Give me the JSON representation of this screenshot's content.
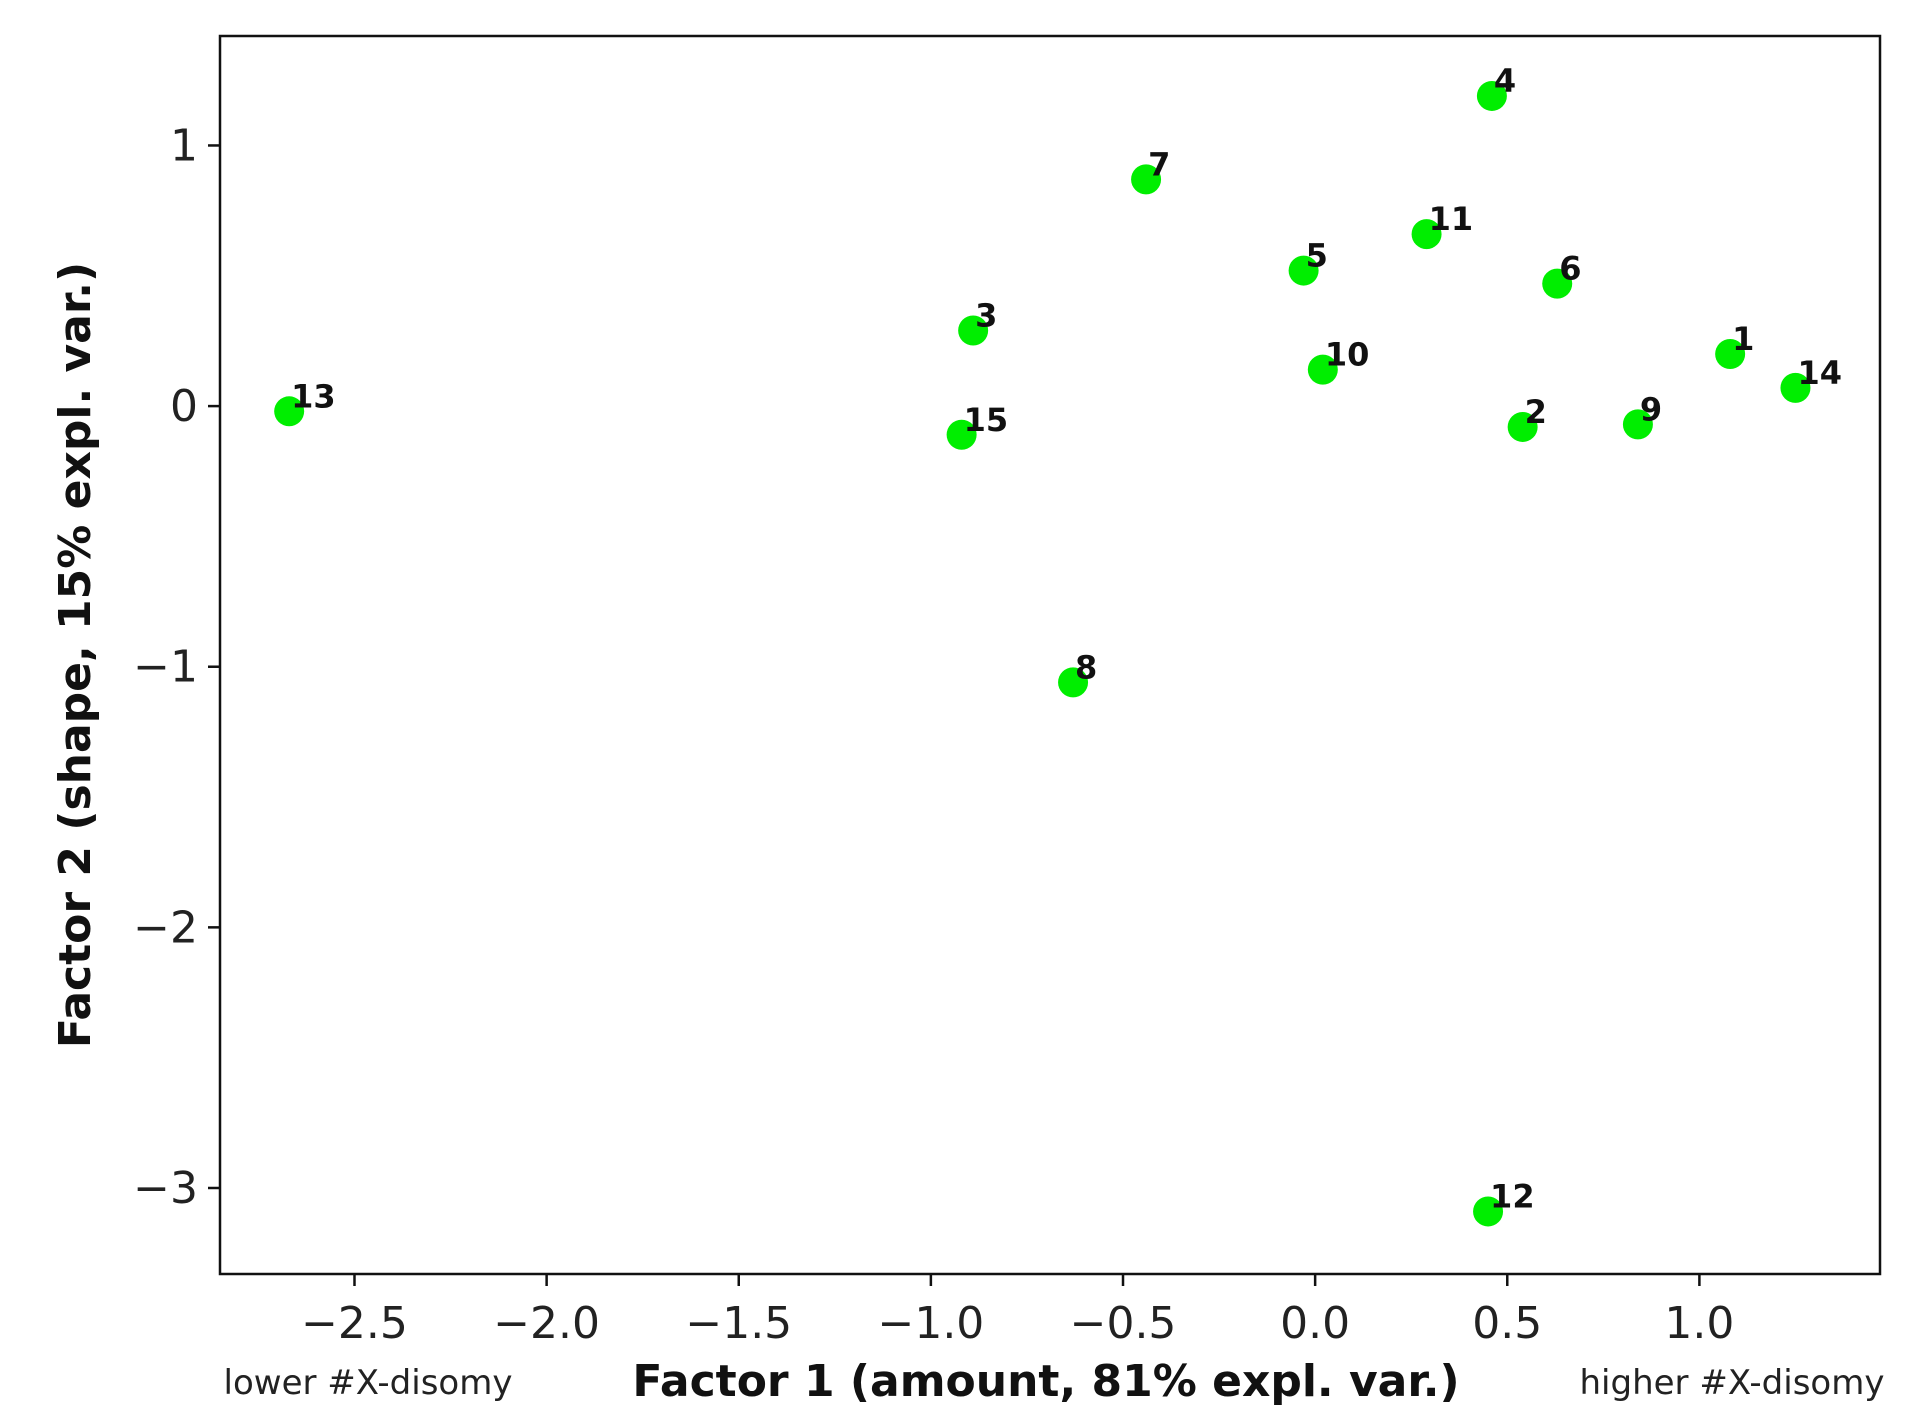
{
  "chart_data": {
    "type": "scatter",
    "xlabel": "Factor 1 (amount, 81% expl. var.)",
    "ylabel": "Factor 2 (shape, 15% expl. var.)",
    "xlim": [
      -2.85,
      1.47
    ],
    "ylim": [
      -3.33,
      1.42
    ],
    "xticks": [
      -2.5,
      -2.0,
      -1.5,
      -1.0,
      -0.5,
      0.0,
      0.5,
      1.0
    ],
    "xtick_labels": [
      "−2.5",
      "−2.0",
      "−1.5",
      "−1.0",
      "−0.5",
      "0.0",
      "0.5",
      "1.0"
    ],
    "yticks": [
      1,
      0,
      -1,
      -2,
      -3
    ],
    "ytick_labels": [
      "1",
      "0",
      "−1",
      "−2",
      "−3"
    ],
    "grid": false,
    "marker_color": "#00ee00",
    "points": [
      {
        "label": "1",
        "x": 1.08,
        "y": 0.2
      },
      {
        "label": "2",
        "x": 0.54,
        "y": -0.08
      },
      {
        "label": "3",
        "x": -0.89,
        "y": 0.29
      },
      {
        "label": "4",
        "x": 0.46,
        "y": 1.19
      },
      {
        "label": "5",
        "x": -0.03,
        "y": 0.52
      },
      {
        "label": "6",
        "x": 0.63,
        "y": 0.47
      },
      {
        "label": "7",
        "x": -0.44,
        "y": 0.87
      },
      {
        "label": "8",
        "x": -0.63,
        "y": -1.06
      },
      {
        "label": "9",
        "x": 0.84,
        "y": -0.07
      },
      {
        "label": "10",
        "x": 0.02,
        "y": 0.14
      },
      {
        "label": "11",
        "x": 0.29,
        "y": 0.66
      },
      {
        "label": "12",
        "x": 0.45,
        "y": -3.09
      },
      {
        "label": "13",
        "x": -2.67,
        "y": -0.02
      },
      {
        "label": "14",
        "x": 1.25,
        "y": 0.07
      },
      {
        "label": "15",
        "x": -0.92,
        "y": -0.11
      }
    ],
    "annotations": {
      "left": "lower #X-disomy",
      "right": "higher #X-disomy"
    }
  }
}
